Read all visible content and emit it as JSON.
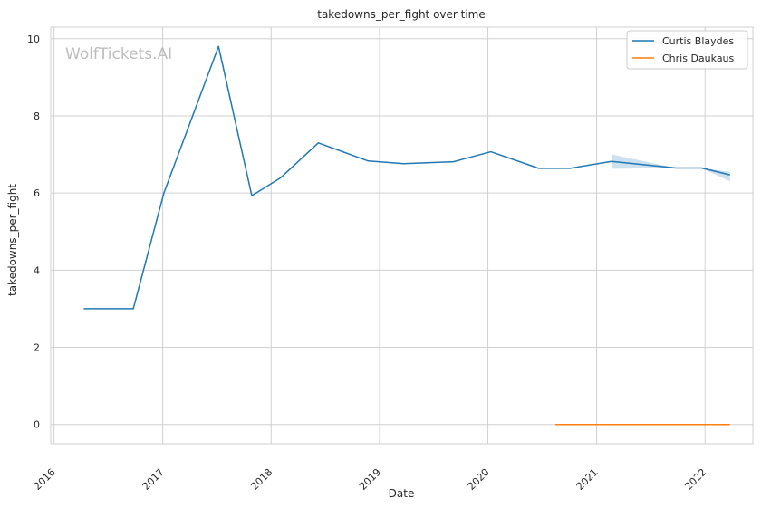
{
  "chart_data": {
    "type": "line",
    "title": "takedowns_per_fight over time",
    "xlabel": "Date",
    "ylabel": "takedowns_per_fight",
    "watermark": "WolfTickets.AI",
    "grid": true,
    "legend_position": "top-right",
    "x_range": [
      "2015-12-21",
      "2022-06-11"
    ],
    "ylim": [
      -0.5,
      10.3
    ],
    "x_ticks": [
      "2016",
      "2017",
      "2018",
      "2019",
      "2020",
      "2021",
      "2022"
    ],
    "y_ticks": [
      "0",
      "2",
      "4",
      "6",
      "8",
      "10"
    ],
    "series": [
      {
        "name": "Curtis Blaydes",
        "color": "#1f77b4",
        "points": [
          {
            "x": "2016-04-10",
            "y": 3.0
          },
          {
            "x": "2016-09-24",
            "y": 3.0
          },
          {
            "x": "2017-01-05",
            "y": 6.0
          },
          {
            "x": "2017-07-08",
            "y": 9.8
          },
          {
            "x": "2017-10-28",
            "y": 5.93
          },
          {
            "x": "2018-02-03",
            "y": 6.4
          },
          {
            "x": "2018-06-09",
            "y": 7.3
          },
          {
            "x": "2018-11-24",
            "y": 6.83
          },
          {
            "x": "2019-03-23",
            "y": 6.76
          },
          {
            "x": "2019-09-07",
            "y": 6.81
          },
          {
            "x": "2020-01-11",
            "y": 7.07
          },
          {
            "x": "2020-06-20",
            "y": 6.64
          },
          {
            "x": "2020-10-03",
            "y": 6.64
          },
          {
            "x": "2021-02-20",
            "y": 6.82
          },
          {
            "x": "2021-09-25",
            "y": 6.65
          },
          {
            "x": "2021-12-20",
            "y": 6.65
          },
          {
            "x": "2022-03-26",
            "y": 6.47
          }
        ],
        "confidence_band": [
          {
            "x": "2021-02-20",
            "low": 6.63,
            "high": 7.0
          },
          {
            "x": "2021-09-25",
            "low": 6.65,
            "high": 6.65
          },
          {
            "x": "2021-12-20",
            "low": 6.65,
            "high": 6.65
          },
          {
            "x": "2022-03-26",
            "low": 6.3,
            "high": 6.55
          }
        ]
      },
      {
        "name": "Chris Daukaus",
        "color": "#ff7f0e",
        "points": [
          {
            "x": "2020-08-15",
            "y": 0
          },
          {
            "x": "2022-03-26",
            "y": 0
          }
        ]
      }
    ]
  }
}
